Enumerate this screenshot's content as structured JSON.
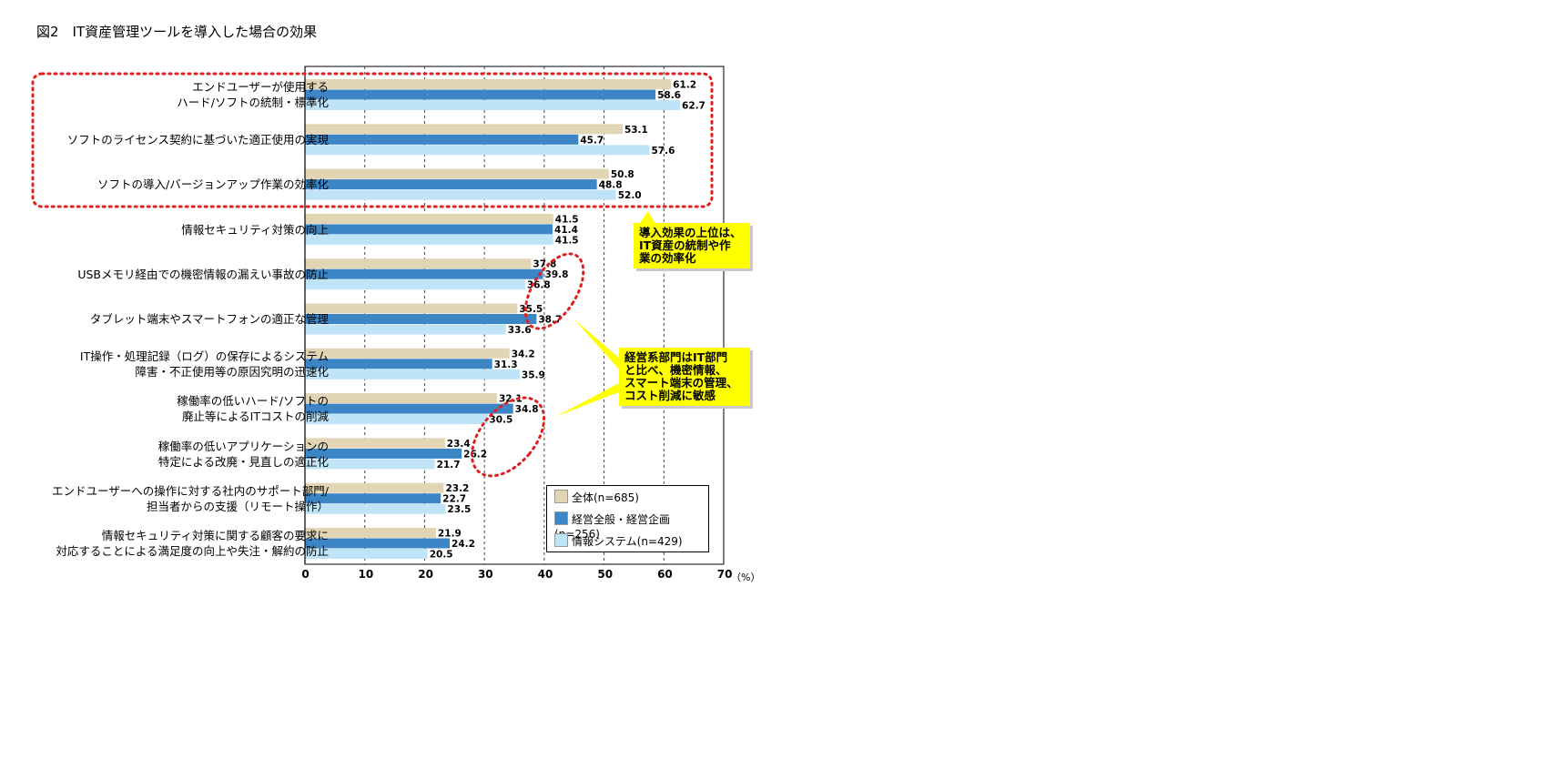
{
  "title": "図2　IT資産管理ツールを導入した場合の効果",
  "colors": {
    "all": "#e2d5b3",
    "mgmt": "#3d86c6",
    "info": "#bfe3f7",
    "callout": "#ffff00",
    "dotted": "#e02020"
  },
  "chart_data": {
    "type": "bar",
    "orientation": "horizontal",
    "categories": [
      [
        "エンドユーザーが使用する",
        "ハード/ソフトの統制・標準化"
      ],
      [
        "ソフトのライセンス契約に基づいた適正使用の実現"
      ],
      [
        "ソフトの導入/バージョンアップ作業の効率化"
      ],
      [
        "情報セキュリティ対策の向上"
      ],
      [
        "USBメモリ経由での機密情報の漏えい事故の防止"
      ],
      [
        "タブレット端末やスマートフォンの適正な管理"
      ],
      [
        "IT操作・処理記録（ログ）の保存によるシステム",
        "障害・不正使用等の原因究明の迅速化"
      ],
      [
        "稼働率の低いハード/ソフトの",
        "廃止等によるITコストの削減"
      ],
      [
        "稼働率の低いアプリケーションの",
        "特定による改廃・見直しの適正化"
      ],
      [
        "エンドユーザーへの操作に対する社内のサポート部門/",
        "担当者からの支援（リモート操作）"
      ],
      [
        "情報セキュリティ対策に関する顧客の要求に",
        "対応することによる満足度の向上や失注・解約の防止"
      ]
    ],
    "series": [
      {
        "name": "全体(n=685)",
        "values": [
          61.2,
          53.1,
          50.8,
          41.5,
          37.8,
          35.5,
          34.2,
          32.1,
          23.4,
          23.2,
          21.9
        ]
      },
      {
        "name": "経営全般・経営企画(n=256)",
        "values": [
          58.6,
          45.7,
          48.8,
          41.4,
          39.8,
          38.7,
          31.3,
          34.8,
          26.2,
          22.7,
          24.2
        ]
      },
      {
        "name": "情報システム(n=429)",
        "values": [
          62.7,
          57.6,
          52.0,
          41.5,
          36.8,
          33.6,
          35.9,
          30.5,
          21.7,
          23.5,
          20.5
        ]
      }
    ],
    "value_labels": [
      [
        "61.2",
        "53.1",
        "50.8",
        "41.5",
        "37.8",
        "35.5",
        "34.2",
        "32.1",
        "23.4",
        "23.2",
        "21.9"
      ],
      [
        "58.6",
        "45.7",
        "48.8",
        "41.4",
        "39.8",
        "38.7",
        "31.3",
        "34.8",
        "26.2",
        "22.7",
        "24.2"
      ],
      [
        "62.7",
        "57.6",
        "52.0",
        "41.5",
        "36.8",
        "33.6",
        "35.9",
        "30.5",
        "21.7",
        "23.5",
        "20.5"
      ]
    ],
    "xlim": [
      0,
      70
    ],
    "xticks": [
      "0",
      "10",
      "20",
      "30",
      "40",
      "50",
      "60",
      "70"
    ],
    "xunit": "（%）",
    "grid": "vertical dashed",
    "legend_position": "bottom-right"
  },
  "callouts": [
    {
      "lines": [
        "導入効果の上位は、",
        "IT資産の統制や作",
        "業の効率化"
      ]
    },
    {
      "lines": [
        "経営系部門はIT部門",
        "と比べ、機密情報、",
        "スマート端末の管理、",
        "コスト削減に敏感"
      ]
    }
  ]
}
